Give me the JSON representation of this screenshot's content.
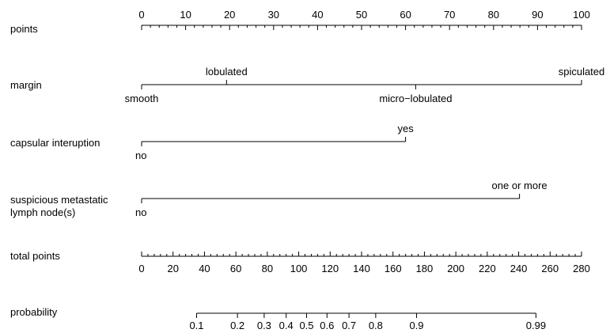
{
  "chart_data": {
    "type": "nomogram",
    "rows": [
      {
        "id": "points",
        "label": "points",
        "scale": {
          "min": 0,
          "max": 100,
          "major_ticks": [
            0,
            10,
            20,
            30,
            40,
            50,
            60,
            70,
            80,
            90,
            100
          ],
          "minor_step": 2,
          "label_position": "above"
        }
      },
      {
        "id": "margin",
        "label": "margin",
        "levels": [
          {
            "name": "smooth",
            "points": 0,
            "label_position": "below"
          },
          {
            "name": "lobulated",
            "points": 19.3,
            "label_position": "above"
          },
          {
            "name": "micro−lobulated",
            "points": 62.3,
            "label_position": "below"
          },
          {
            "name": "spiculated",
            "points": 100,
            "label_position": "above"
          }
        ]
      },
      {
        "id": "capsular",
        "label": "capsular interuption",
        "levels": [
          {
            "name": "no",
            "points": 0,
            "label_position": "below"
          },
          {
            "name": "yes",
            "points": 60,
            "label_position": "above"
          }
        ]
      },
      {
        "id": "lymph",
        "label_lines": [
          "suspicious metastatic",
          "lymph node(s)"
        ],
        "levels": [
          {
            "name": "no",
            "points": 0,
            "label_position": "below"
          },
          {
            "name": "one or more",
            "points": 85.9,
            "label_position": "above"
          }
        ]
      },
      {
        "id": "total",
        "label": "total points",
        "scale": {
          "min": 0,
          "max": 280,
          "major_ticks": [
            0,
            20,
            40,
            60,
            80,
            100,
            120,
            140,
            160,
            180,
            200,
            220,
            240,
            260,
            280
          ],
          "minor_step": 4,
          "label_position": "below"
        }
      },
      {
        "id": "probability",
        "label": "probability",
        "ticks": [
          {
            "label": "0.1",
            "total_points": 35
          },
          {
            "label": "0.2",
            "total_points": 61
          },
          {
            "label": "0.3",
            "total_points": 78
          },
          {
            "label": "0.4",
            "total_points": 92
          },
          {
            "label": "0.5",
            "total_points": 105
          },
          {
            "label": "0.6",
            "total_points": 118
          },
          {
            "label": "0.7",
            "total_points": 132
          },
          {
            "label": "0.8",
            "total_points": 149
          },
          {
            "label": "0.9",
            "total_points": 175
          },
          {
            "label": "0.99",
            "total_points": 251
          }
        ]
      }
    ]
  }
}
